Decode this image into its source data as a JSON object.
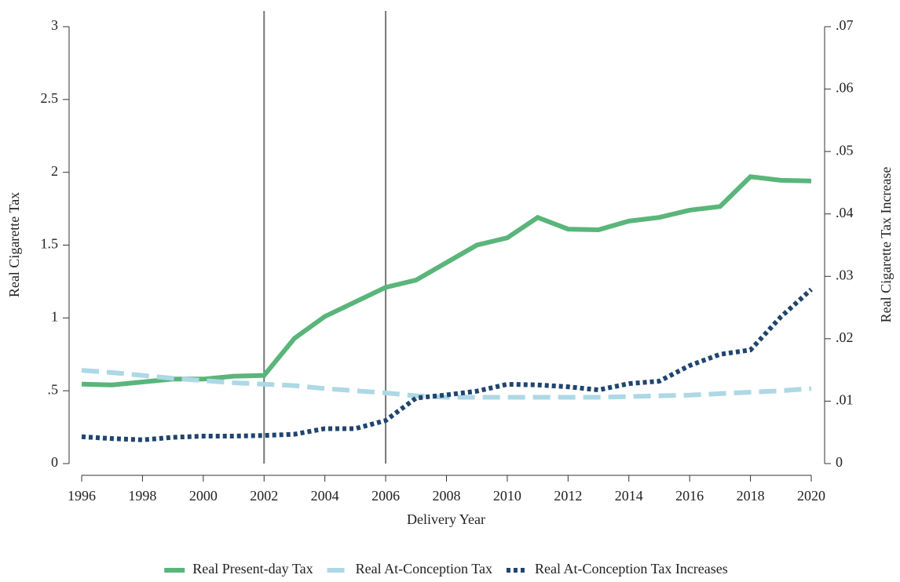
{
  "chart_data": {
    "type": "line",
    "x_label": "Delivery Year",
    "y_label": "Real Cigarette Tax",
    "y2_label": "Real Cigarette Tax Increase",
    "x": [
      1996,
      1997,
      1998,
      1999,
      2000,
      2001,
      2002,
      2003,
      2004,
      2005,
      2006,
      2007,
      2008,
      2009,
      2010,
      2011,
      2012,
      2013,
      2014,
      2015,
      2016,
      2017,
      2018,
      2019,
      2020
    ],
    "xlim": [
      1996,
      2020
    ],
    "xticks": [
      1996,
      1998,
      2000,
      2002,
      2004,
      2006,
      2008,
      2010,
      2012,
      2014,
      2016,
      2018,
      2020
    ],
    "ylim": [
      0,
      3
    ],
    "yticks": [
      0,
      {
        "value": 0.5,
        "label": ".5"
      },
      1,
      1.5,
      2,
      2.5,
      3
    ],
    "y2lim": [
      0,
      0.07
    ],
    "y2ticks": [
      0,
      {
        "value": 0.01,
        "label": ".01"
      },
      {
        "value": 0.02,
        "label": ".02"
      },
      {
        "value": 0.03,
        "label": ".03"
      },
      {
        "value": 0.04,
        "label": ".04"
      },
      {
        "value": 0.05,
        "label": ".05"
      },
      {
        "value": 0.06,
        "label": ".06"
      },
      {
        "value": 0.07,
        "label": ".07"
      }
    ],
    "vlines": [
      2002,
      2006
    ],
    "series": [
      {
        "name": "Real Present-day Tax",
        "color": "#5ab57a",
        "style": "solid",
        "values": [
          0.545,
          0.54,
          0.56,
          0.58,
          0.58,
          0.6,
          0.605,
          0.86,
          1.01,
          1.11,
          1.21,
          1.26,
          1.38,
          1.5,
          1.55,
          1.69,
          1.61,
          1.605,
          1.665,
          1.69,
          1.74,
          1.765,
          1.97,
          1.945,
          1.94
        ]
      },
      {
        "name": "Real At-Conception Tax",
        "color": "#add8e6",
        "style": "dashed",
        "values": [
          0.64,
          0.625,
          0.605,
          0.585,
          0.57,
          0.555,
          0.545,
          0.535,
          0.515,
          0.5,
          0.485,
          0.465,
          0.455,
          0.455,
          0.455,
          0.455,
          0.455,
          0.455,
          0.46,
          0.465,
          0.47,
          0.48,
          0.49,
          0.5,
          0.515
        ]
      },
      {
        "name": "Real At-Conception  Tax Increases",
        "color": "#1f456e",
        "style": "dotted",
        "axis": "y2",
        "values": [
          0.0043,
          0.004,
          0.0038,
          0.0042,
          0.0044,
          0.0044,
          0.0045,
          0.0047,
          0.0056,
          0.0056,
          0.0069,
          0.0105,
          0.011,
          0.0116,
          0.0127,
          0.0126,
          0.0123,
          0.0118,
          0.0128,
          0.0132,
          0.0157,
          0.0175,
          0.0182,
          0.0235,
          0.0279
        ]
      }
    ]
  }
}
